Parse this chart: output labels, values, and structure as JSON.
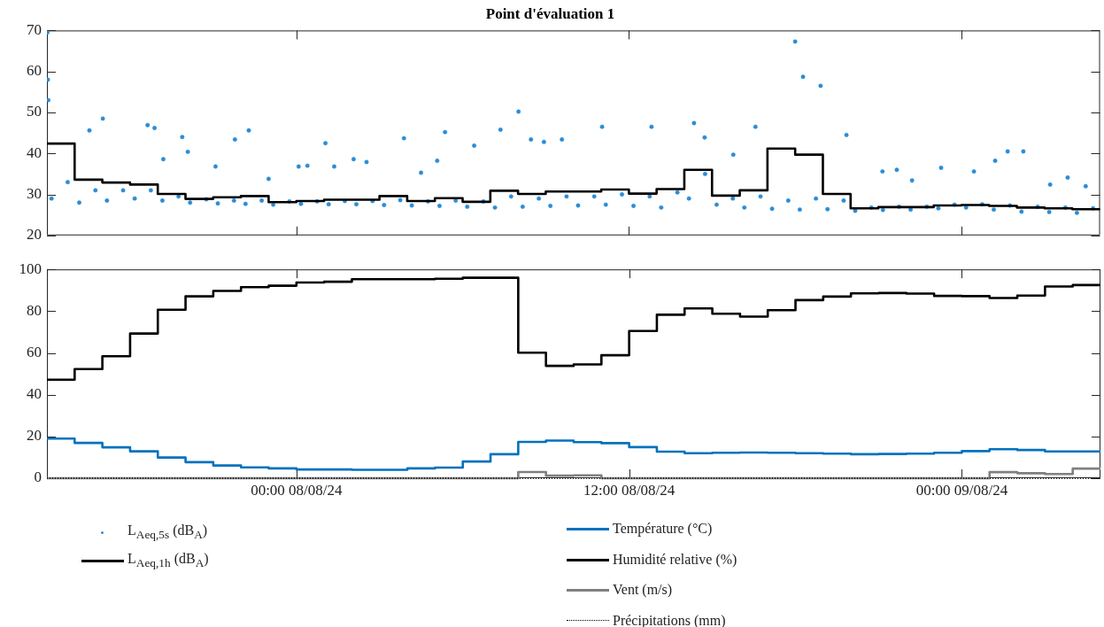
{
  "chart_data": [
    {
      "type": "step",
      "title": "Point d'évaluation 1",
      "x": [
        "--08-07T15:00",
        "--08-07T16:00",
        "--08-07T17:00",
        "--08-07T18:00",
        "--08-07T19:00",
        "--08-07T20:00",
        "--08-07T21:00",
        "--08-07T22:00",
        "--08-07T23:00",
        "--08-08T00:00",
        "--08-08T01:00",
        "--08-08T02:00",
        "--08-08T03:00",
        "--08-08T04:00",
        "--08-08T05:00",
        "--08-08T06:00",
        "--08-08T07:00",
        "--08-08T08:00",
        "--08-08T09:00",
        "--08-08T10:00",
        "--08-08T11:00",
        "--08-08T12:00",
        "--08-08T13:00",
        "--08-08T14:00",
        "--08-08T15:00",
        "--08-08T16:00",
        "--08-08T17:00",
        "--08-08T18:00",
        "--08-08T19:00",
        "--08-08T20:00",
        "--08-08T21:00",
        "--08-08T22:00",
        "--08-08T23:00",
        "--08-09T00:00",
        "--08-09T01:00",
        "--08-09T02:00",
        "--08-09T03:00",
        "--08-09T04:00",
        "--08-09T05:00"
      ],
      "series": [
        {
          "name": "L$_{Aeq,5s}$ (dB$_{A}$)",
          "type": "scatter",
          "marker": "circle",
          "color": "#2b8cd6",
          "x": [
            "--08-07T15:01",
            "--08-07T15:02",
            "--08-07T15:03",
            "--08-07T15:10",
            "--08-07T15:45",
            "--08-07T16:10",
            "--08-07T16:32",
            "--08-07T16:45",
            "--08-07T17:01",
            "--08-07T17:10",
            "--08-07T17:45",
            "--08-07T18:10",
            "--08-07T18:38",
            "--08-07T18:45",
            "--08-07T18:53",
            "--08-07T19:10",
            "--08-07T19:12",
            "--08-07T19:45",
            "--08-07T19:53",
            "--08-07T20:05",
            "--08-07T20:10",
            "--08-07T20:45",
            "--08-07T21:05",
            "--08-07T21:10",
            "--08-07T21:45",
            "--08-07T21:47",
            "--08-07T22:10",
            "--08-07T22:17",
            "--08-07T22:45",
            "--08-07T23:00",
            "--08-07T23:10",
            "--08-07T23:45",
            "--08-08T00:05",
            "--08-08T00:10",
            "--08-08T00:24",
            "--08-08T00:45",
            "--08-08T01:03",
            "--08-08T01:10",
            "--08-08T01:22",
            "--08-08T01:45",
            "--08-08T02:04",
            "--08-08T02:10",
            "--08-08T02:32",
            "--08-08T02:45",
            "--08-08T03:10",
            "--08-08T03:45",
            "--08-08T03:53",
            "--08-08T04:10",
            "--08-08T04:30",
            "--08-08T04:45",
            "--08-08T05:05",
            "--08-08T05:10",
            "--08-08T05:22",
            "--08-08T05:45",
            "--08-08T06:10",
            "--08-08T06:25",
            "--08-08T06:45",
            "--08-08T07:10",
            "--08-08T07:22",
            "--08-08T07:45",
            "--08-08T08:01",
            "--08-08T08:10",
            "--08-08T08:28",
            "--08-08T08:45",
            "--08-08T08:56",
            "--08-08T09:10",
            "--08-08T09:35",
            "--08-08T09:45",
            "--08-08T10:10",
            "--08-08T10:45",
            "--08-08T11:02",
            "--08-08T11:10",
            "--08-08T11:45",
            "--08-08T12:10",
            "--08-08T12:45",
            "--08-08T12:49",
            "--08-08T13:10",
            "--08-08T13:45",
            "--08-08T14:10",
            "--08-08T14:21",
            "--08-08T14:44",
            "--08-08T14:45",
            "--08-08T15:10",
            "--08-08T15:45",
            "--08-08T15:46",
            "--08-08T16:10",
            "--08-08T16:34",
            "--08-08T16:45",
            "--08-08T17:10",
            "--08-08T17:45",
            "--08-08T18:00",
            "--08-08T18:10",
            "--08-08T18:17",
            "--08-08T18:45",
            "--08-08T18:55",
            "--08-08T19:10",
            "--08-08T19:45",
            "--08-08T19:51",
            "--08-08T20:10",
            "--08-08T20:45",
            "--08-08T21:09",
            "--08-08T21:10",
            "--08-08T21:40",
            "--08-08T21:45",
            "--08-08T22:10",
            "--08-08T22:13",
            "--08-08T22:45",
            "--08-08T23:10",
            "--08-08T23:16",
            "--08-08T23:45",
            "--08-09T00:10",
            "--08-09T00:27",
            "--08-09T00:45",
            "--08-09T01:10",
            "--08-09T01:13",
            "--08-09T01:40",
            "--08-09T01:45",
            "--08-09T02:10",
            "--08-09T02:14",
            "--08-09T02:45",
            "--08-09T03:10",
            "--08-09T03:12",
            "--08-09T03:45",
            "--08-09T03:50",
            "--08-09T04:10",
            "--08-09T04:29",
            "--08-09T04:45"
          ],
          "values": [
            69.5,
            58,
            53,
            29,
            33,
            28,
            45.6,
            31,
            48.5,
            28.5,
            31,
            29,
            46.9,
            31,
            46.2,
            28.5,
            38.6,
            29.5,
            44.0,
            40.4,
            28,
            28.8,
            36.8,
            27.8,
            28.5,
            43.4,
            27.7,
            45.6,
            28.5,
            33.8,
            27.5,
            28.3,
            36.8,
            27.7,
            37.0,
            28.3,
            42.5,
            27.6,
            36.8,
            28.4,
            38.6,
            27.6,
            37.9,
            28.4,
            27.4,
            28.6,
            43.7,
            27.3,
            35.3,
            28.3,
            38.2,
            27.2,
            45.2,
            28.5,
            27,
            41.9,
            28.3,
            26.8,
            45.8,
            29.5,
            50.2,
            27,
            43.4,
            29,
            42.8,
            27.2,
            43.4,
            29.5,
            27.3,
            29.5,
            46.5,
            27.5,
            30,
            27.2,
            29.5,
            46.5,
            26.8,
            30.5,
            29,
            47.4,
            43.9,
            35,
            27.5,
            29,
            39.7,
            26.8,
            46.5,
            29.5,
            26.5,
            28.5,
            67.3,
            26.3,
            58.7,
            29,
            56.5,
            26.4,
            28.5,
            44.5,
            26,
            26.8,
            35.6,
            26.2,
            36.0,
            27,
            26.3,
            33.4,
            27,
            26.6,
            36.5,
            27.5,
            26.8,
            35.6,
            27.6,
            26.3,
            38.2,
            40.5,
            27.3,
            25.8,
            40.5,
            27,
            25.7,
            32.4,
            26.8,
            34.1,
            25.5,
            32.0,
            26.6
          ]
        },
        {
          "name": "L$_{Aeq,1h}$ (dB$_{A}$)",
          "color": "#000000",
          "line_style": "solid",
          "values": [
            42.4,
            33.6,
            32.9,
            32.4,
            30.1,
            28.9,
            29.3,
            29.6,
            28.1,
            28.4,
            28.7,
            28.7,
            29.6,
            28.4,
            29.1,
            28.2,
            30.9,
            30.1,
            30.7,
            30.7,
            31.2,
            30.2,
            31.3,
            36.0,
            29.7,
            31.0,
            41.2,
            39.7,
            30.1,
            26.6,
            26.9,
            26.9,
            27.3,
            27.4,
            27.2,
            26.8,
            26.6,
            26.4,
            26.4
          ]
        }
      ],
      "xlim": [
        "--08-07T15:00",
        "--08-09T05:00"
      ],
      "xticks": [
        {
          "value": "--08-08T00:00",
          "label": null
        },
        {
          "value": "--08-08T12:00",
          "label": null
        },
        {
          "value": "--08-09T00:00",
          "label": null
        }
      ],
      "ylim": [
        20,
        70
      ],
      "yticks": [
        20,
        30,
        40,
        50,
        60,
        70
      ],
      "tick_labels": "y",
      "grid": false,
      "legend": "bottom left"
    },
    {
      "type": "step",
      "x": [
        "--08-07T15:00",
        "--08-07T16:00",
        "--08-07T17:00",
        "--08-07T18:00",
        "--08-07T19:00",
        "--08-07T20:00",
        "--08-07T21:00",
        "--08-07T22:00",
        "--08-07T23:00",
        "--08-08T00:00",
        "--08-08T01:00",
        "--08-08T02:00",
        "--08-08T03:00",
        "--08-08T04:00",
        "--08-08T05:00",
        "--08-08T06:00",
        "--08-08T07:00",
        "--08-08T08:00",
        "--08-08T09:00",
        "--08-08T10:00",
        "--08-08T11:00",
        "--08-08T12:00",
        "--08-08T13:00",
        "--08-08T14:00",
        "--08-08T15:00",
        "--08-08T16:00",
        "--08-08T17:00",
        "--08-08T18:00",
        "--08-08T19:00",
        "--08-08T20:00",
        "--08-08T21:00",
        "--08-08T22:00",
        "--08-08T23:00",
        "--08-09T00:00",
        "--08-09T01:00",
        "--08-09T02:00",
        "--08-09T03:00",
        "--08-09T04:00",
        "--08-09T05:00"
      ],
      "series": [
        {
          "name": "Température (°C)",
          "color": "#0072bd",
          "line_style": "solid",
          "values": [
            19.0,
            16.9,
            14.8,
            12.9,
            9.9,
            7.7,
            6.1,
            5.2,
            4.7,
            4.2,
            4.2,
            4.0,
            4.0,
            4.7,
            5.1,
            8.0,
            11.5,
            17.4,
            18.0,
            17.3,
            16.8,
            14.9,
            12.7,
            12.0,
            12.2,
            12.3,
            12.2,
            12.0,
            11.8,
            11.5,
            11.6,
            11.8,
            12.2,
            13.0,
            13.9,
            13.5,
            12.8,
            12.8,
            12.8
          ]
        },
        {
          "name": "Humidité relative (%)",
          "color": "#000000",
          "line_style": "solid",
          "values": [
            47.2,
            52.3,
            58.4,
            69.3,
            80.7,
            87.1,
            89.7,
            91.5,
            92.2,
            93.7,
            94.1,
            95.3,
            95.3,
            95.3,
            95.5,
            96.0,
            96.0,
            60.1,
            53.8,
            54.5,
            58.9,
            70.5,
            78.3,
            81.3,
            78.8,
            77.4,
            80.5,
            85.3,
            87.0,
            88.5,
            88.7,
            88.4,
            87.3,
            87.2,
            86.3,
            87.5,
            91.8,
            92.5,
            92.5
          ]
        },
        {
          "name": "Vent (m/s)",
          "color": "#808080",
          "line_style": "solid",
          "values": [
            0,
            0,
            0,
            0,
            0,
            0,
            0,
            0,
            0,
            0,
            0,
            0,
            0,
            0,
            0,
            0,
            0,
            3.0,
            1.2,
            1.4,
            0,
            0,
            0,
            0,
            0,
            0,
            0,
            0,
            0,
            0,
            0,
            0,
            0,
            0,
            2.9,
            2.4,
            2.0,
            4.6,
            4.6
          ]
        },
        {
          "name": "Précipitations (mm)",
          "color": "#000000",
          "line_style": "dotted",
          "values": [
            0,
            0,
            0,
            0,
            0,
            0,
            0,
            0,
            0,
            0,
            0,
            0,
            0,
            0,
            0,
            0,
            0,
            0,
            0,
            0,
            0,
            0,
            0,
            0,
            0,
            0,
            0,
            0,
            0,
            0,
            0,
            0,
            0,
            0,
            0,
            0,
            0,
            0,
            0
          ]
        }
      ],
      "xlim": [
        "--08-07T15:00",
        "--08-09T05:00"
      ],
      "xticks": [
        {
          "value": "--08-08T00:00",
          "label": "00:00 08/08/24"
        },
        {
          "value": "--08-08T12:00",
          "label": "12:00 08/08/24"
        },
        {
          "value": "--08-09T00:00",
          "label": "00:00 09/08/24"
        }
      ],
      "ylim": [
        0,
        100
      ],
      "yticks": [
        0,
        20,
        40,
        60,
        80,
        100
      ],
      "grid": false,
      "legend": "bottom"
    }
  ]
}
